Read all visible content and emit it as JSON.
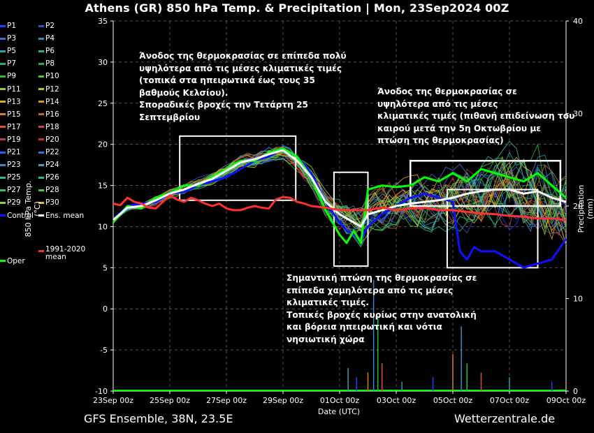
{
  "header": {
    "title": "Athens  (GR)  850 hPa Temp. & Precipitation | Mon, 23Sep2024 00Z"
  },
  "footer": {
    "model": "GFS Ensemble, 38N, 23.5E",
    "source": "Wetterzentrale.de"
  },
  "legend": {
    "items": [
      {
        "label": "P1",
        "color": "#1f3fff"
      },
      {
        "label": "P2",
        "color": "#2b55cc"
      },
      {
        "label": "P3",
        "color": "#3f6fd0"
      },
      {
        "label": "P4",
        "color": "#2e8fb0"
      },
      {
        "label": "P5",
        "color": "#2aa0a8"
      },
      {
        "label": "P6",
        "color": "#29b090"
      },
      {
        "label": "P7",
        "color": "#22b070"
      },
      {
        "label": "P8",
        "color": "#1fb050"
      },
      {
        "label": "P9",
        "color": "#25c030"
      },
      {
        "label": "P10",
        "color": "#45c820"
      },
      {
        "label": "P11",
        "color": "#8ad020"
      },
      {
        "label": "P12",
        "color": "#b8cc20"
      },
      {
        "label": "P13",
        "color": "#d8b020"
      },
      {
        "label": "P14",
        "color": "#e09a20"
      },
      {
        "label": "P15",
        "color": "#d8801a"
      },
      {
        "label": "P16",
        "color": "#c86a18"
      },
      {
        "label": "P17",
        "color": "#e05030"
      },
      {
        "label": "P18",
        "color": "#d04050"
      },
      {
        "label": "P19",
        "color": "#c03060"
      },
      {
        "label": "P20",
        "color": "#c83040"
      },
      {
        "label": "P21",
        "color": "#2060ff"
      },
      {
        "label": "P22",
        "color": "#3070e0"
      },
      {
        "label": "P23",
        "color": "#3a88c8"
      },
      {
        "label": "P24",
        "color": "#40a0c0"
      },
      {
        "label": "P25",
        "color": "#30b8a0"
      },
      {
        "label": "P26",
        "color": "#28c080"
      },
      {
        "label": "P27",
        "color": "#30c060"
      },
      {
        "label": "P28",
        "color": "#50c840"
      },
      {
        "label": "P29",
        "color": "#90d030"
      },
      {
        "label": "P30",
        "color": "#d0c020"
      },
      {
        "label": "Control",
        "color": "#1010ff"
      },
      {
        "label": "Ens. mean",
        "color": "#ffffff"
      },
      {
        "label": "Oper",
        "color": "#00ff00"
      },
      {
        "label": "1991-2020 mean",
        "color": "#ff3030"
      }
    ]
  },
  "annotations": {
    "warm_period": [
      "Άνοδος της θερμοκρασίας σε επίπεδα πολύ",
      "υψηλότερα από τις μέσες κλιματικές τιμές",
      "(τοπικά στα ηπειρωτικά έως τους 35",
      "βαθμούς Κελσίου).",
      "Σποραδικές βροχές την Τετάρτη 25",
      "Σεπτεμβρίου"
    ],
    "late_warm": [
      "Άνοδος της θερμοκρασίας σε",
      "υψηλότερα από τις μέσες",
      "κλιματικές τιμές (πιθανή επιδείνωση του",
      "καιρού μετά την 5η Οκτωβρίου με",
      "πτώση της θερμοκρασίας)"
    ],
    "cold_drop": [
      "Σημαντική πτώση της θερμοκρασίας σε",
      "επίπεδα χαμηλότερα από τις μέσες",
      "κλιματικές τιμές.",
      "Τοπικές βροχές κυρίως στην ανατολική",
      "και βόρεια ηπειρωτική και νότια",
      "νησιωτική χώρα"
    ]
  },
  "chart_data": {
    "type": "line",
    "x_unit": "days since 23Sep 00z (UTC)",
    "xlabel": "Date (UTC)",
    "ylabel": "850 hPa Temp. (°C)",
    "y2label": "Precipitation (mm)",
    "xlim": [
      0,
      16
    ],
    "ylim": [
      -10,
      35
    ],
    "y2lim": [
      0,
      40
    ],
    "x_ticks": [
      0,
      2,
      4,
      6,
      8,
      10,
      12,
      14,
      16
    ],
    "x_ticklabels": [
      "23Sep 00z",
      "25Sep 00z",
      "27Sep 00z",
      "29Sep 00z",
      "01Oct 00z",
      "03Oct 00z",
      "05Oct 00z",
      "07Oct 00z",
      "09Oct 00z"
    ],
    "y_ticks": [
      -10,
      -5,
      0,
      5,
      10,
      15,
      20,
      25,
      30,
      35
    ],
    "y2_ticks": [
      0,
      10,
      20,
      30,
      40
    ],
    "grid": true,
    "series": [
      {
        "name": "Control",
        "color": "#1010ff",
        "x": [
          0,
          0.5,
          1,
          1.5,
          2,
          2.5,
          3,
          3.5,
          4,
          4.5,
          5,
          5.5,
          6,
          6.5,
          7,
          7.5,
          8,
          8.25,
          8.5,
          8.75,
          9,
          9.5,
          10,
          10.5,
          11,
          11.5,
          12,
          12.25,
          12.5,
          12.75,
          13,
          13.5,
          14,
          14.5,
          15,
          15.5,
          16
        ],
        "y": [
          10.8,
          12.5,
          12.8,
          13.0,
          14.0,
          14.2,
          15.0,
          15.5,
          16.0,
          17.0,
          18.0,
          18.5,
          19.5,
          18.5,
          16.5,
          13.0,
          10.5,
          9.5,
          9.0,
          8.5,
          10.0,
          11.5,
          12.5,
          13.5,
          14.0,
          13.5,
          13.0,
          7.0,
          6.0,
          7.5,
          7.0,
          7.0,
          6.0,
          5.0,
          5.5,
          6.0,
          8.5
        ]
      },
      {
        "name": "Oper",
        "color": "#00ff00",
        "x": [
          0,
          0.5,
          1,
          1.5,
          2,
          2.5,
          3,
          3.5,
          4,
          4.5,
          5,
          5.5,
          6,
          6.5,
          7,
          7.5,
          8,
          8.25,
          8.5,
          8.75,
          9,
          9.5,
          10,
          10.5,
          11,
          11.5,
          12,
          12.5,
          13,
          13.5,
          14,
          14.5,
          15,
          15.5,
          16
        ],
        "y": [
          10.5,
          12.5,
          12.2,
          13.5,
          14.0,
          15.0,
          15.0,
          16.0,
          17.0,
          18.0,
          18.0,
          19.0,
          19.5,
          18.5,
          16.0,
          12.0,
          9.0,
          8.0,
          9.5,
          8.0,
          14.5,
          15.0,
          14.8,
          15.0,
          16.0,
          15.5,
          16.5,
          15.5,
          17.0,
          16.5,
          16.0,
          15.5,
          16.5,
          15.0,
          13.5
        ]
      },
      {
        "name": "Ens. mean",
        "color": "#ffffff",
        "x": [
          0,
          0.5,
          1,
          1.5,
          2,
          2.5,
          3,
          3.5,
          4,
          4.5,
          5,
          5.5,
          6,
          6.5,
          7,
          7.5,
          8,
          8.25,
          8.5,
          8.75,
          9,
          9.5,
          10,
          10.5,
          11,
          11.5,
          12,
          12.5,
          13,
          13.5,
          14,
          14.5,
          15,
          15.5,
          16
        ],
        "y": [
          10.8,
          12.3,
          12.5,
          13.2,
          14.0,
          14.5,
          15.2,
          15.8,
          16.8,
          17.8,
          18.2,
          18.8,
          19.3,
          18.0,
          16.0,
          13.0,
          11.5,
          11.0,
          10.5,
          10.0,
          11.5,
          12.0,
          12.5,
          12.8,
          13.0,
          13.2,
          13.5,
          14.0,
          14.3,
          14.5,
          14.5,
          14.0,
          14.3,
          13.5,
          13.0
        ]
      },
      {
        "name": "1991-2020 mean",
        "color": "#ff3030",
        "x": [
          0,
          0.25,
          0.5,
          0.75,
          1,
          1.25,
          1.5,
          1.75,
          2,
          2.25,
          2.5,
          2.75,
          3,
          3.25,
          3.5,
          3.75,
          4,
          4.25,
          4.5,
          4.75,
          5,
          5.25,
          5.5,
          5.75,
          6,
          6.25,
          6.5,
          6.75,
          7,
          7.5,
          8,
          8.5,
          9,
          9.5,
          10,
          10.5,
          11,
          11.5,
          12,
          12.5,
          13,
          13.5,
          14,
          14.5,
          15,
          15.5,
          16
        ],
        "y": [
          12.8,
          12.6,
          13.5,
          13.0,
          12.8,
          12.3,
          12.2,
          13.0,
          13.8,
          13.3,
          13.0,
          13.5,
          13.2,
          12.8,
          12.5,
          12.8,
          12.2,
          12.0,
          12.0,
          12.3,
          12.5,
          12.3,
          12.2,
          13.3,
          13.6,
          13.5,
          13.0,
          12.8,
          12.5,
          12.3,
          12.0,
          12.0,
          12.0,
          12.3,
          12.0,
          12.2,
          12.3,
          12.0,
          12.0,
          11.8,
          11.6,
          11.5,
          11.3,
          11.2,
          11.0,
          11.0,
          10.8
        ]
      }
    ],
    "precipitation": {
      "unit": "mm",
      "events": [
        {
          "x": 8.3,
          "y": 2.5
        },
        {
          "x": 8.6,
          "y": 1.5
        },
        {
          "x": 9.0,
          "y": 2.0
        },
        {
          "x": 9.2,
          "y": 12.0
        },
        {
          "x": 9.35,
          "y": 8.0
        },
        {
          "x": 9.5,
          "y": 3.0
        },
        {
          "x": 10.2,
          "y": 1.0
        },
        {
          "x": 11.3,
          "y": 1.5
        },
        {
          "x": 12.0,
          "y": 4.0
        },
        {
          "x": 12.3,
          "y": 7.0
        },
        {
          "x": 12.5,
          "y": 3.0
        },
        {
          "x": 13.0,
          "y": 2.0
        },
        {
          "x": 14.0,
          "y": 1.5
        },
        {
          "x": 15.5,
          "y": 1.0
        }
      ]
    },
    "highlight_boxes": [
      {
        "x": [
          2.35,
          6.45
        ],
        "y": [
          13.2,
          21.0
        ]
      },
      {
        "x": [
          7.8,
          9.0
        ],
        "y": [
          5.2,
          16.6
        ]
      },
      {
        "x": [
          10.5,
          15.8
        ],
        "y": [
          12.5,
          18.0
        ]
      },
      {
        "x": [
          11.8,
          15.0
        ],
        "y": [
          5.0,
          14.5
        ]
      }
    ]
  }
}
